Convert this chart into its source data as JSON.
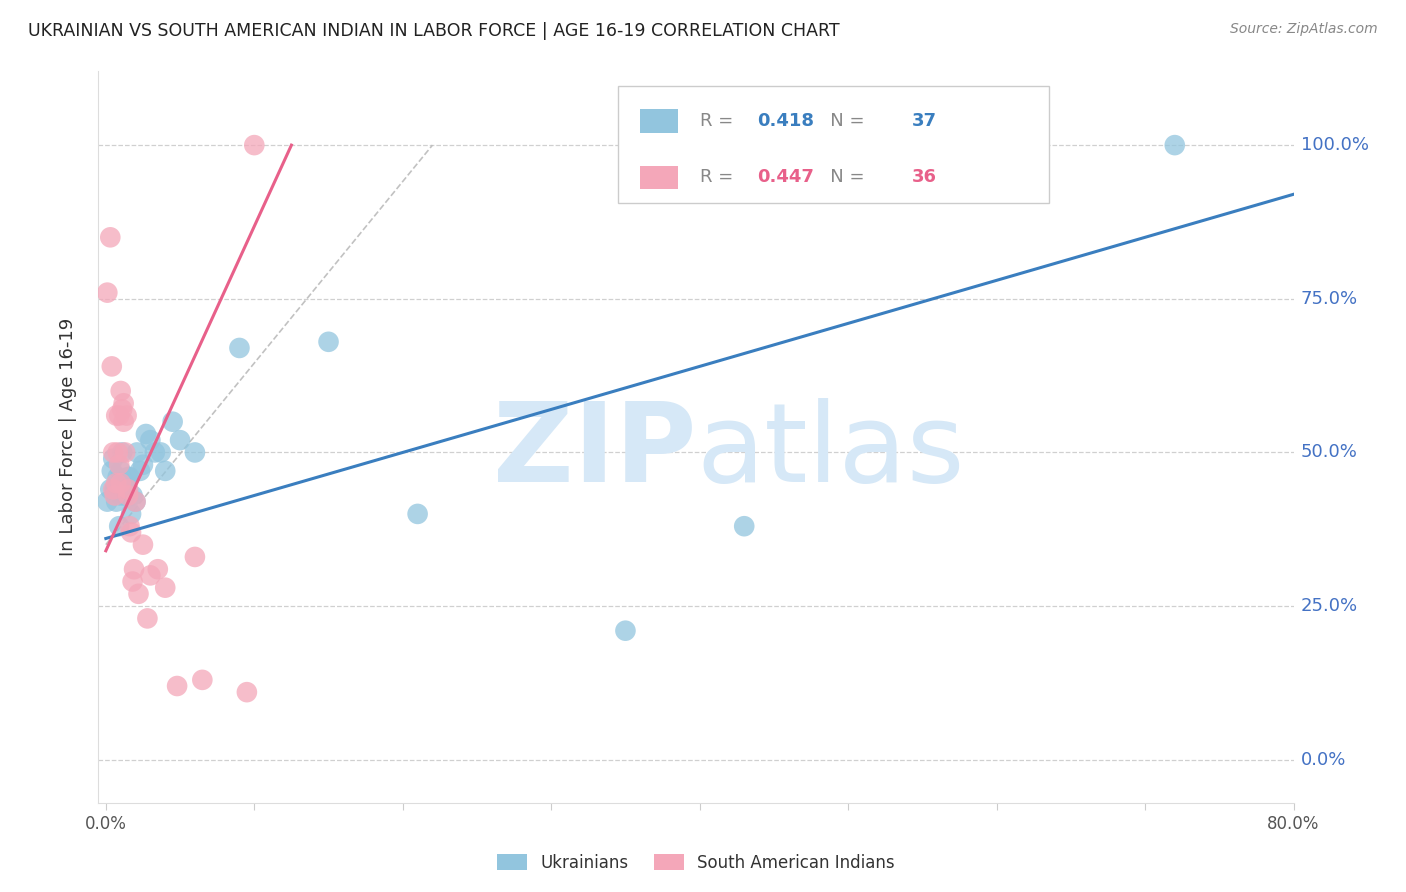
{
  "title": "UKRAINIAN VS SOUTH AMERICAN INDIAN IN LABOR FORCE | AGE 16-19 CORRELATION CHART",
  "source": "Source: ZipAtlas.com",
  "ylabel": "In Labor Force | Age 16-19",
  "right_ytick_labels": [
    "100.0%",
    "75.0%",
    "50.0%",
    "25.0%",
    "0.0%"
  ],
  "right_ytick_values": [
    1.0,
    0.75,
    0.5,
    0.25,
    0.0
  ],
  "xlim": [
    -0.005,
    0.8
  ],
  "ylim": [
    -0.07,
    1.12
  ],
  "blue_R": 0.418,
  "blue_N": 37,
  "pink_R": 0.447,
  "pink_N": 36,
  "blue_color": "#92c5de",
  "pink_color": "#f4a7b9",
  "blue_line_color": "#3a7ebf",
  "pink_line_color": "#e8608a",
  "grid_color": "#d0d0d0",
  "title_color": "#222222",
  "right_axis_color": "#4472c4",
  "watermark_color": "#d6e8f7",
  "blue_x": [
    0.001,
    0.003,
    0.004,
    0.005,
    0.006,
    0.007,
    0.008,
    0.009,
    0.009,
    0.01,
    0.01,
    0.011,
    0.012,
    0.013,
    0.014,
    0.015,
    0.016,
    0.017,
    0.018,
    0.02,
    0.021,
    0.023,
    0.025,
    0.027,
    0.03,
    0.033,
    0.037,
    0.04,
    0.045,
    0.05,
    0.06,
    0.09,
    0.15,
    0.21,
    0.35,
    0.43,
    0.72
  ],
  "blue_y": [
    0.42,
    0.44,
    0.47,
    0.49,
    0.44,
    0.42,
    0.46,
    0.44,
    0.38,
    0.43,
    0.47,
    0.5,
    0.44,
    0.43,
    0.45,
    0.46,
    0.46,
    0.4,
    0.43,
    0.42,
    0.5,
    0.47,
    0.48,
    0.53,
    0.52,
    0.5,
    0.5,
    0.47,
    0.55,
    0.52,
    0.5,
    0.67,
    0.68,
    0.4,
    0.21,
    0.38,
    1.0
  ],
  "pink_x": [
    0.001,
    0.003,
    0.004,
    0.005,
    0.005,
    0.006,
    0.007,
    0.007,
    0.008,
    0.009,
    0.009,
    0.01,
    0.01,
    0.011,
    0.012,
    0.012,
    0.013,
    0.014,
    0.015,
    0.015,
    0.016,
    0.017,
    0.018,
    0.019,
    0.02,
    0.022,
    0.025,
    0.028,
    0.03,
    0.035,
    0.04,
    0.048,
    0.06,
    0.065,
    0.095,
    0.1
  ],
  "pink_y": [
    0.76,
    0.85,
    0.64,
    0.44,
    0.5,
    0.43,
    0.45,
    0.56,
    0.5,
    0.48,
    0.56,
    0.45,
    0.6,
    0.57,
    0.55,
    0.58,
    0.5,
    0.56,
    0.43,
    0.44,
    0.38,
    0.37,
    0.29,
    0.31,
    0.42,
    0.27,
    0.35,
    0.23,
    0.3,
    0.31,
    0.28,
    0.12,
    0.33,
    0.13,
    0.11,
    1.0
  ],
  "blue_trend_x": [
    0.0,
    0.8
  ],
  "blue_trend_y": [
    0.36,
    0.92
  ],
  "pink_trend_x": [
    0.0,
    0.125
  ],
  "pink_trend_y": [
    0.34,
    1.0
  ],
  "ref_line_x": [
    0.0,
    0.22
  ],
  "ref_line_y": [
    0.35,
    1.0
  ]
}
